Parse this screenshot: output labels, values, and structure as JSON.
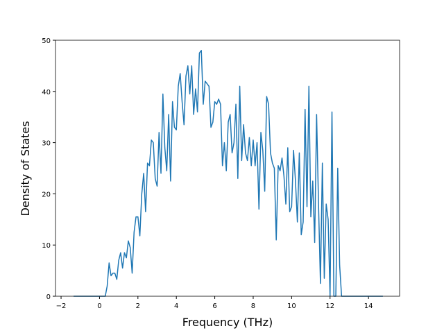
{
  "chart_data": {
    "type": "line",
    "xlabel": "Frequency (THz)",
    "ylabel": "Density of States",
    "xlim": [
      -2.29,
      15.62
    ],
    "ylim": [
      0,
      50
    ],
    "xticks": [
      {
        "value": -2,
        "label": "−2"
      },
      0,
      2,
      4,
      6,
      8,
      10,
      12,
      14
    ],
    "yticks": [
      0,
      10,
      20,
      30,
      40,
      50
    ],
    "series": [
      {
        "color": "#1f77b4",
        "x": [
          -1.35,
          0.3,
          0.4,
          0.5,
          0.6,
          0.7,
          0.8,
          0.9,
          1.0,
          1.1,
          1.2,
          1.3,
          1.4,
          1.5,
          1.6,
          1.7,
          1.8,
          1.9,
          2.0,
          2.1,
          2.2,
          2.3,
          2.4,
          2.5,
          2.6,
          2.7,
          2.8,
          2.9,
          3.0,
          3.1,
          3.2,
          3.3,
          3.4,
          3.5,
          3.6,
          3.7,
          3.8,
          3.9,
          4.0,
          4.1,
          4.2,
          4.3,
          4.4,
          4.5,
          4.6,
          4.7,
          4.8,
          4.9,
          5.0,
          5.1,
          5.2,
          5.3,
          5.4,
          5.5,
          5.6,
          5.7,
          5.8,
          5.9,
          6.0,
          6.1,
          6.2,
          6.3,
          6.4,
          6.5,
          6.6,
          6.7,
          6.8,
          6.9,
          7.0,
          7.1,
          7.2,
          7.3,
          7.4,
          7.5,
          7.6,
          7.7,
          7.8,
          7.9,
          8.0,
          8.1,
          8.2,
          8.3,
          8.4,
          8.5,
          8.6,
          8.7,
          8.8,
          8.9,
          9.0,
          9.1,
          9.2,
          9.3,
          9.4,
          9.5,
          9.6,
          9.7,
          9.8,
          9.9,
          10.0,
          10.1,
          10.2,
          10.3,
          10.4,
          10.5,
          10.6,
          10.7,
          10.8,
          10.9,
          11.0,
          11.1,
          11.2,
          11.3,
          11.4,
          11.5,
          11.6,
          11.7,
          11.8,
          11.9,
          12.0,
          12.1,
          12.2,
          12.3,
          12.4,
          12.5,
          12.6,
          14.75
        ],
        "values": [
          0,
          0,
          2,
          6.5,
          4,
          4.5,
          4.5,
          3.3,
          7,
          8.5,
          5.5,
          8.5,
          7.5,
          10.8,
          9.5,
          4.5,
          12.5,
          15.5,
          15.5,
          11.8,
          20,
          24,
          16.5,
          26,
          25.5,
          30.5,
          30,
          23,
          21.5,
          32,
          24,
          39.5,
          29,
          24.5,
          35.5,
          22.5,
          38,
          33,
          32.5,
          41,
          43.5,
          38,
          33.5,
          43,
          45,
          39.5,
          45,
          35.5,
          40.5,
          36,
          47.5,
          48,
          37.5,
          42,
          41.5,
          41,
          33,
          34,
          38,
          37.5,
          38.5,
          37.5,
          25.5,
          30,
          24.5,
          34,
          35.5,
          28,
          30,
          37.5,
          23,
          41,
          26.5,
          33.5,
          28,
          26.5,
          31,
          25.5,
          30.5,
          25.5,
          30,
          17,
          32,
          28.5,
          20.5,
          39,
          37.5,
          28,
          26,
          25,
          11,
          25.5,
          24.5,
          27,
          23.5,
          18,
          29,
          16.5,
          17.5,
          28.5,
          22.5,
          14.5,
          28,
          12,
          14.5,
          36.5,
          17.5,
          41,
          15.5,
          22.5,
          10.5,
          35.5,
          18,
          2.5,
          26,
          3.5,
          18,
          15,
          0,
          36,
          0,
          0,
          25,
          6,
          0,
          0
        ]
      }
    ]
  }
}
